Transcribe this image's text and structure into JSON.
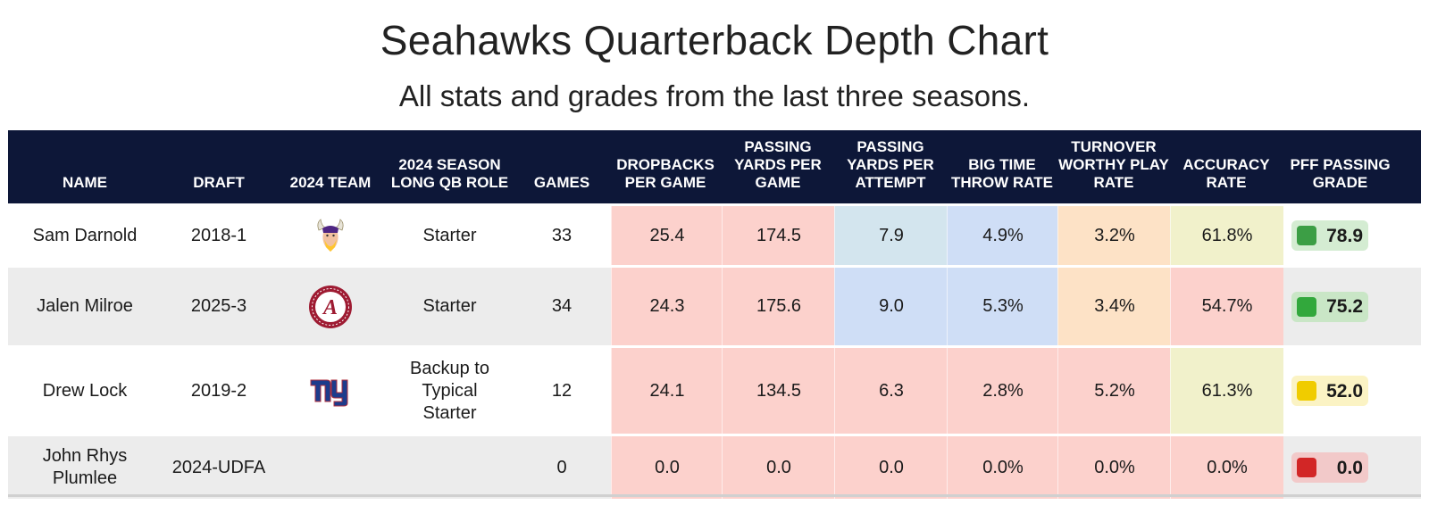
{
  "title": "Seahawks Quarterback Depth Chart",
  "subtitle": "All stats and grades from the last three seasons.",
  "headers": {
    "name": "NAME",
    "draft": "DRAFT",
    "team": "2024 TEAM",
    "role": "2024 SEASON LONG QB ROLE",
    "games": "GAMES",
    "dropbacks": "DROPBACKS PER GAME",
    "ypg": "PASSING YARDS PER GAME",
    "ypa": "PASSING YARDS PER ATTEMPT",
    "btt": "BIG TIME THROW RATE",
    "twp": "TURNOVER WORTHY PLAY RATE",
    "acc": "ACCURACY RATE",
    "grade": "PFF PASSING GRADE"
  },
  "rows": [
    {
      "name": "Sam Darnold",
      "draft": "2018-1",
      "team_logo": "vikings-logo",
      "role": "Starter",
      "games": "33",
      "dropbacks": "25.4",
      "ypg": "174.5",
      "ypa": "7.9",
      "btt": "4.9%",
      "twp": "3.2%",
      "acc": "61.8%",
      "grade": "78.9",
      "colors": {
        "dropbacks": "#fcd1cc",
        "ypg": "#fcd1cc",
        "ypa": "#d3e5ee",
        "btt": "#cfdef6",
        "twp": "#fde2c6",
        "acc": "#f1f1cb",
        "grade_bg": "#d4ecd2",
        "grade_dot": "#3c9e45"
      }
    },
    {
      "name": "Jalen Milroe",
      "draft": "2025-3",
      "team_logo": "alabama-logo",
      "role": "Starter",
      "games": "34",
      "dropbacks": "24.3",
      "ypg": "175.6",
      "ypa": "9.0",
      "btt": "5.3%",
      "twp": "3.4%",
      "acc": "54.7%",
      "grade": "75.2",
      "colors": {
        "dropbacks": "#fcd1cc",
        "ypg": "#fcd1cc",
        "ypa": "#cfdef6",
        "btt": "#cfdef6",
        "twp": "#fde2c6",
        "acc": "#fcd1cc",
        "grade_bg": "#c9e6c6",
        "grade_dot": "#32a83c"
      }
    },
    {
      "name": "Drew Lock",
      "draft": "2019-2",
      "team_logo": "giants-logo",
      "role": "Backup to Typical Starter",
      "games": "12",
      "dropbacks": "24.1",
      "ypg": "134.5",
      "ypa": "6.3",
      "btt": "2.8%",
      "twp": "5.2%",
      "acc": "61.3%",
      "grade": "52.0",
      "colors": {
        "dropbacks": "#fcd1cc",
        "ypg": "#fcd1cc",
        "ypa": "#fcd1cc",
        "btt": "#fcd1cc",
        "twp": "#fcd1cc",
        "acc": "#f1f1cb",
        "grade_bg": "#fbf3c4",
        "grade_dot": "#f0cc00"
      }
    },
    {
      "name": "John Rhys Plumlee",
      "draft": "2024-UDFA",
      "team_logo": "",
      "role": "",
      "games": "0",
      "dropbacks": "0.0",
      "ypg": "0.0",
      "ypa": "0.0",
      "btt": "0.0%",
      "twp": "0.0%",
      "acc": "0.0%",
      "grade": "0.0",
      "colors": {
        "dropbacks": "#fcd1cc",
        "ypg": "#fcd1cc",
        "ypa": "#fcd1cc",
        "btt": "#fcd1cc",
        "twp": "#fcd1cc",
        "acc": "#fcd1cc",
        "grade_bg": "#f2c9c9",
        "grade_dot": "#d22626"
      }
    }
  ],
  "row_backgrounds": [
    "#ffffff",
    "#ececec",
    "#ffffff",
    "#ececec"
  ],
  "header_bg": "#0d1738"
}
